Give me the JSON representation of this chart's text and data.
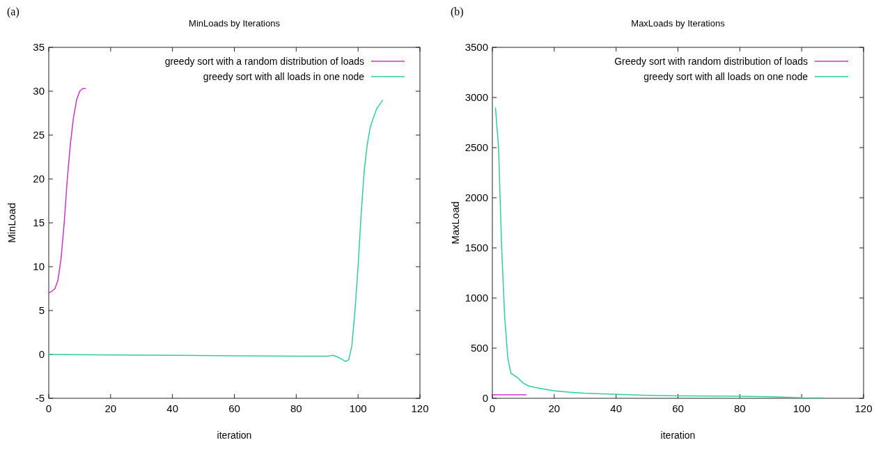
{
  "chart_data": [
    {
      "type": "line",
      "title": "MinLoads by Iterations",
      "xlabel": "iteration",
      "ylabel": "MinLoad",
      "annotations": [
        "(a)"
      ],
      "xlim": [
        0,
        120
      ],
      "ylim": [
        -5,
        35
      ],
      "xticks": [
        0,
        20,
        40,
        60,
        80,
        100,
        120
      ],
      "yticks": [
        -5,
        0,
        5,
        10,
        15,
        20,
        25,
        30,
        35
      ],
      "grid": false,
      "legend": "top right",
      "series": [
        {
          "name": "greedy sort with a random distribution of loads",
          "color": "#cc33cc",
          "x": [
            0,
            1,
            2,
            3,
            4,
            5,
            6,
            7,
            8,
            9,
            10,
            11,
            12
          ],
          "values": [
            7,
            7.2,
            7.5,
            8.5,
            11,
            15,
            20,
            24,
            27,
            29,
            30,
            30.3,
            30.3
          ]
        },
        {
          "name": "greedy sort with all loads in one node",
          "color": "#33cc99",
          "x": [
            0,
            20,
            40,
            60,
            80,
            90,
            92,
            94,
            96,
            97,
            98,
            99,
            100,
            101,
            102,
            103,
            104,
            105,
            106,
            107,
            108
          ],
          "values": [
            0,
            -0.05,
            -0.1,
            -0.15,
            -0.2,
            -0.2,
            -0.1,
            -0.4,
            -0.8,
            -0.6,
            1,
            5,
            10,
            16,
            21,
            24,
            26,
            27,
            28,
            28.5,
            29
          ]
        }
      ]
    },
    {
      "type": "line",
      "title": "MaxLoads by Iterations",
      "xlabel": "iteration",
      "ylabel": "MaxLoad",
      "annotations": [
        "(b)"
      ],
      "xlim": [
        0,
        120
      ],
      "ylim": [
        0,
        3500
      ],
      "xticks": [
        0,
        20,
        40,
        60,
        80,
        100,
        120
      ],
      "yticks": [
        0,
        500,
        1000,
        1500,
        2000,
        2500,
        3000,
        3500
      ],
      "grid": false,
      "legend": "top right",
      "series": [
        {
          "name": "Greedy sort with random distribution of loads",
          "color": "#cc33cc",
          "x": [
            0,
            2,
            4,
            6,
            8,
            10,
            11
          ],
          "values": [
            35,
            35,
            35,
            35,
            35,
            35,
            35
          ]
        },
        {
          "name": "greedy sort with all loads on one node",
          "color": "#33cc99",
          "x": [
            1,
            2,
            3,
            4,
            5,
            6,
            8,
            10,
            12,
            15,
            20,
            25,
            30,
            40,
            50,
            60,
            80,
            90,
            100,
            107
          ],
          "values": [
            2900,
            2500,
            1500,
            800,
            400,
            250,
            210,
            150,
            120,
            100,
            75,
            60,
            50,
            40,
            30,
            25,
            20,
            15,
            5,
            3
          ]
        }
      ]
    }
  ]
}
